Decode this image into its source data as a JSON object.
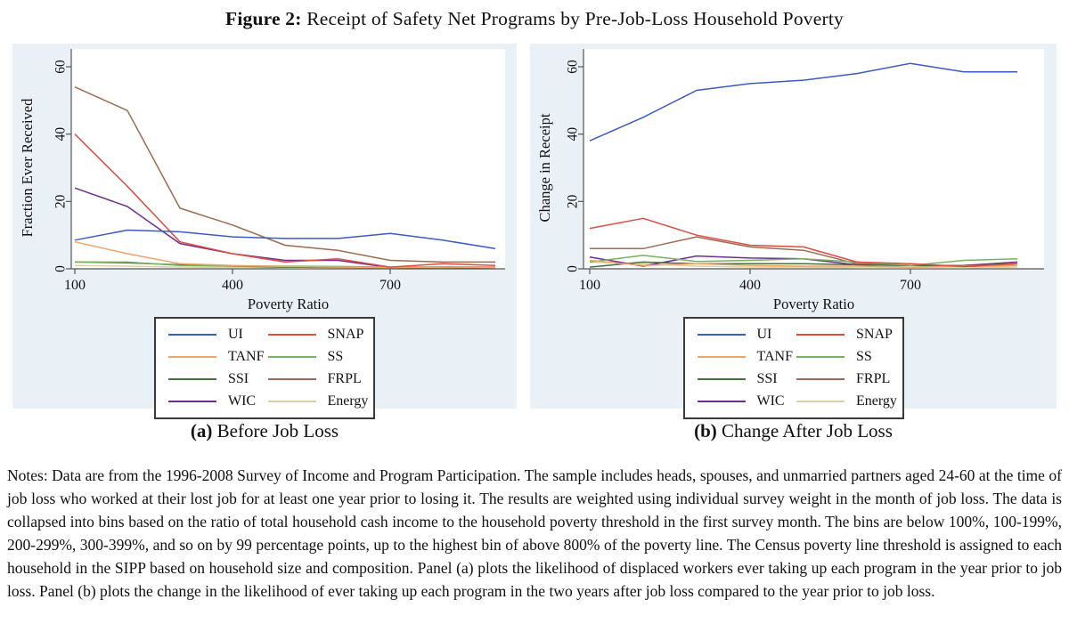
{
  "title": {
    "prefix": "Figure 2:",
    "text": " Receipt of Safety Net Programs by Pre-Job-Loss Household Poverty"
  },
  "captions": [
    {
      "label": "(a)",
      "text": " Before Job Loss"
    },
    {
      "label": "(b)",
      "text": " Change After Job Loss"
    }
  ],
  "notes": "Notes: Data are from the 1996-2008 Survey of Income and Program Participation. The sample includes heads, spouses, and unmarried partners aged 24-60 at the time of job loss who worked at their lost job for at least one year prior to losing it. The results are weighted using individual survey weight in the month of job loss. The data is collapsed into bins based on the ratio of total household cash income to the household poverty threshold in the first survey month. The bins are below 100%, 100-199%, 200-299%, 300-399%, and so on by 99 percentage points, up to the highest bin of above 800% of the poverty line. The Census poverty line threshold is assigned to each household in the SIPP based on household size and composition. Panel (a) plots the likelihood of displaced workers ever taking up each program in the year prior to job loss. Panel (b) plots the change in the likelihood of ever taking up each program in the two years after job loss compared to the year prior to job loss.",
  "colors": {
    "panel_bg": "#e9f0f6",
    "axis": "#555555",
    "legend_border": "#3a3a38"
  },
  "chart_data": [
    {
      "type": "line",
      "title": "Before Job Loss",
      "xlabel": "Poverty Ratio",
      "ylabel": "Fraction Ever Received",
      "x": [
        100,
        200,
        300,
        400,
        500,
        600,
        700,
        800,
        900
      ],
      "xticks": [
        100,
        400,
        700
      ],
      "yticks": [
        0,
        20,
        40,
        60
      ],
      "xlim": [
        100,
        920
      ],
      "ylim": [
        0,
        62
      ],
      "grid": false,
      "legend_position": "below",
      "series": [
        {
          "name": "UI",
          "color": "#3b5bc4",
          "values": [
            8.5,
            11.5,
            11,
            9.5,
            9,
            9,
            10.5,
            8.5,
            6
          ]
        },
        {
          "name": "SNAP",
          "color": "#e04b40",
          "values": [
            40,
            24.5,
            8,
            4.5,
            2,
            3,
            0.5,
            1.5,
            1
          ]
        },
        {
          "name": "TANF",
          "color": "#f0a269",
          "values": [
            8,
            4.5,
            1.5,
            1,
            0.7,
            0.5,
            0.4,
            0.5,
            0.4
          ]
        },
        {
          "name": "SS",
          "color": "#77b35e",
          "values": [
            2,
            2,
            1,
            0.8,
            0.8,
            0.7,
            0.5,
            0.6,
            0.5
          ]
        },
        {
          "name": "SSI",
          "color": "#45703f",
          "values": [
            2,
            1.8,
            1.2,
            0.8,
            0.5,
            0.4,
            0.3,
            0.4,
            0.3
          ]
        },
        {
          "name": "FRPL",
          "color": "#9e6a52",
          "values": [
            54,
            47,
            18,
            13,
            7,
            5.5,
            2.5,
            2,
            2
          ]
        },
        {
          "name": "WIC",
          "color": "#6f2d91",
          "values": [
            24,
            18.5,
            7.5,
            4.5,
            2.5,
            2.5,
            0.4,
            0.5,
            0.5
          ]
        },
        {
          "name": "Energy",
          "color": "#ddd1a1",
          "values": [
            1,
            0.8,
            0.5,
            0.4,
            0.3,
            0.3,
            0.3,
            0.4,
            0.3
          ]
        }
      ]
    },
    {
      "type": "line",
      "title": "Change After Job Loss",
      "xlabel": "Poverty Ratio",
      "ylabel": "Change in Receipt",
      "x": [
        100,
        200,
        300,
        400,
        500,
        600,
        700,
        800,
        900
      ],
      "xticks": [
        100,
        400,
        700
      ],
      "yticks": [
        0,
        20,
        40,
        60
      ],
      "xlim": [
        100,
        920
      ],
      "ylim": [
        0,
        62
      ],
      "grid": false,
      "legend_position": "below",
      "series": [
        {
          "name": "UI",
          "color": "#3b5bc4",
          "values": [
            38,
            45,
            53,
            55,
            56,
            58,
            61,
            58.5,
            58.5
          ]
        },
        {
          "name": "SNAP",
          "color": "#e04b40",
          "values": [
            12,
            15,
            10,
            7,
            6.5,
            2,
            1.5,
            0.7,
            1.5
          ]
        },
        {
          "name": "TANF",
          "color": "#f0a269",
          "values": [
            2.5,
            1,
            1.5,
            1,
            0.8,
            0.8,
            0.5,
            0.8,
            1
          ]
        },
        {
          "name": "SS",
          "color": "#77b35e",
          "values": [
            2,
            4,
            2.2,
            2.5,
            3,
            2,
            1,
            2.5,
            3
          ]
        },
        {
          "name": "SSI",
          "color": "#45703f",
          "values": [
            0.5,
            2,
            1.5,
            1.5,
            1.5,
            1.2,
            1,
            1,
            1.5
          ]
        },
        {
          "name": "FRPL",
          "color": "#9e6a52",
          "values": [
            6,
            6,
            9.5,
            6.5,
            5.5,
            1.5,
            1,
            0.7,
            1
          ]
        },
        {
          "name": "WIC",
          "color": "#6f2d91",
          "values": [
            3.5,
            0.8,
            3.8,
            3.2,
            3,
            1.2,
            1,
            1,
            2
          ]
        },
        {
          "name": "Energy",
          "color": "#ddd1a1",
          "values": [
            2,
            1.5,
            0.8,
            0.5,
            0.5,
            0.3,
            0.3,
            0.3,
            0.5
          ]
        }
      ]
    }
  ]
}
